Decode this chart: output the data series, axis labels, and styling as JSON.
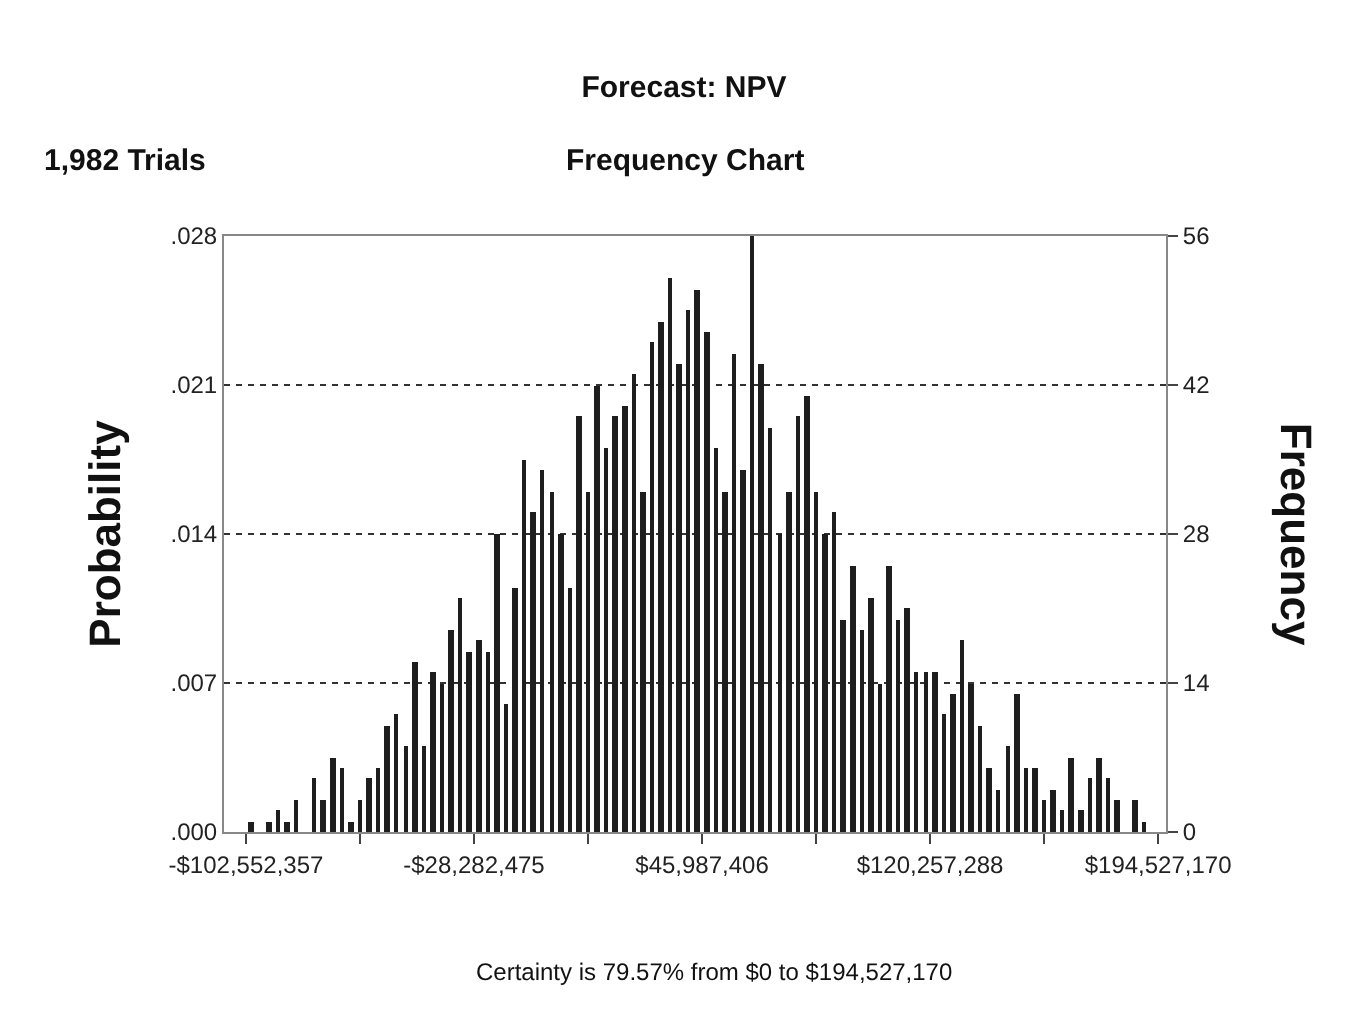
{
  "chart_data": {
    "type": "histogram",
    "title": "Forecast: NPV",
    "subtitle": "Frequency Chart",
    "ylabel": "Probability",
    "y2label": "Frequency",
    "annotations": [
      "1,982 Trials",
      "Certainty is 79.57% from $0 to $194,527,170"
    ],
    "bins": [
      -102552357,
      -99581562,
      -96610766,
      -93639971,
      -90669176,
      -87698381,
      -84727585,
      -81756790,
      -78785995,
      -75815199,
      -72844404,
      -69873609,
      -66902814,
      -63932018,
      -60961223,
      -57990428,
      -55019632,
      -52048837,
      -49078042,
      -46107246,
      -43136451,
      -40165656,
      -37194861,
      -34224065,
      -31253270,
      -28282475,
      -25311680,
      -22340884,
      -19370089,
      -16399294,
      -13428499,
      -10457703,
      -7486908,
      -4516113,
      -1545317,
      1425478,
      4396273,
      7367068,
      10337864,
      13308659,
      16279454,
      19250249,
      22221045,
      25191840,
      28162635,
      31133430,
      34104226,
      37075021,
      40045816,
      43016611,
      45987406,
      48958201,
      51928997,
      54899792,
      57870587,
      60841383,
      63812178,
      66782973,
      69753768,
      72724564,
      75695359,
      78666154,
      81636950,
      84607745,
      87578540,
      90549335,
      93520131,
      96490926,
      99461721,
      102432516,
      105403312,
      108374107,
      111344902,
      114315697,
      117286493,
      120257288,
      123228083,
      126198878,
      129169674,
      132140469,
      135111264,
      138082059,
      141052855,
      144023650,
      146994445,
      149965240,
      152936036,
      155906831,
      158877626,
      161848421,
      164819217,
      167790012,
      170760807,
      173731602,
      176702398,
      179673193,
      182643988,
      185614783,
      188585579,
      191556374,
      194527170
    ],
    "series": [
      {
        "axis": "y2",
        "color": "#1e1e1e",
        "values": [
          1,
          0,
          1,
          2,
          1,
          3,
          0,
          5,
          3,
          7,
          6,
          1,
          3,
          5,
          6,
          10,
          11,
          8,
          16,
          8,
          15,
          14,
          19,
          22,
          17,
          18,
          17,
          28,
          12,
          23,
          35,
          30,
          34,
          32,
          28,
          23,
          39,
          32,
          42,
          36,
          39,
          40,
          43,
          32,
          46,
          48,
          52,
          44,
          49,
          51,
          47,
          36,
          32,
          45,
          34,
          56,
          44,
          38,
          28,
          32,
          39,
          41,
          32,
          28,
          30,
          20,
          25,
          19,
          22,
          14,
          25,
          20,
          21,
          15,
          15,
          15,
          11,
          13,
          18,
          14,
          10,
          6,
          4,
          8,
          13,
          6,
          6,
          3,
          4,
          2,
          7,
          2,
          5,
          7,
          5,
          3,
          0,
          3,
          1,
          0
        ]
      }
    ],
    "xlim": [
      -109700000,
      197100000
    ],
    "xticks": [
      {
        "value": -102552357,
        "label": "-$102,552,357"
      },
      {
        "value": -65417416,
        "label": null
      },
      {
        "value": -28282475,
        "label": "-$28,282,475"
      },
      {
        "value": 8852466,
        "label": null
      },
      {
        "value": 45987406,
        "label": "$45,987,406"
      },
      {
        "value": 83122347,
        "label": null
      },
      {
        "value": 120257288,
        "label": "$120,257,288"
      },
      {
        "value": 157392229,
        "label": null
      },
      {
        "value": 194527170,
        "label": "$194,527,170"
      }
    ],
    "ylim": [
      0,
      0.028
    ],
    "yticks": [
      {
        "value": 0,
        "label": ".000"
      },
      {
        "value": 0.007,
        "label": ".007"
      },
      {
        "value": 0.014,
        "label": ".014"
      },
      {
        "value": 0.021,
        "label": ".021"
      },
      {
        "value": 0.028,
        "label": ".028"
      }
    ],
    "y2lim": [
      0,
      56
    ],
    "y2ticks": [
      0,
      14,
      28,
      42,
      56
    ],
    "grid": "y"
  }
}
